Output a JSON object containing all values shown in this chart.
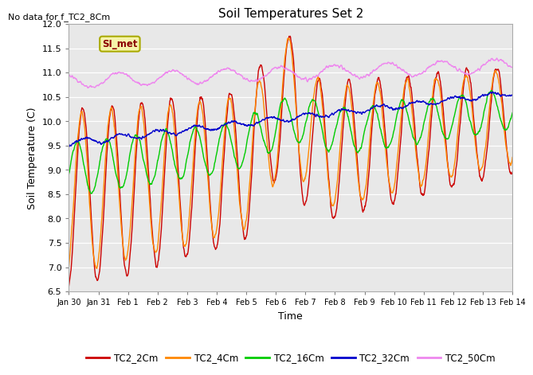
{
  "title": "Soil Temperatures Set 2",
  "xlabel": "Time",
  "ylabel": "Soil Temperature (C)",
  "annotation_text": "No data for f_TC2_8Cm",
  "legend_label_text": "SI_met",
  "ylim": [
    6.5,
    12.0
  ],
  "yticks": [
    6.5,
    7.0,
    7.5,
    8.0,
    8.5,
    9.0,
    9.5,
    10.0,
    10.5,
    11.0,
    11.5,
    12.0
  ],
  "xtick_labels": [
    "Jan 30",
    "Jan 31",
    "Feb 1",
    "Feb 2",
    "Feb 3",
    "Feb 4",
    "Feb 5",
    "Feb 6",
    "Feb 7",
    "Feb 8",
    "Feb 9",
    "Feb 10",
    "Feb 11",
    "Feb 12",
    "Feb 13",
    "Feb 14"
  ],
  "colors": {
    "TC2_2Cm": "#cc0000",
    "TC2_4Cm": "#ff8800",
    "TC2_16Cm": "#00cc00",
    "TC2_32Cm": "#0000cc",
    "TC2_50Cm": "#ee88ee"
  },
  "fig_bg": "#ffffff",
  "plot_bg": "#e8e8e8",
  "line_width": 1.0,
  "legend_entries": [
    "TC2_2Cm",
    "TC2_4Cm",
    "TC2_16Cm",
    "TC2_32Cm",
    "TC2_50Cm"
  ]
}
